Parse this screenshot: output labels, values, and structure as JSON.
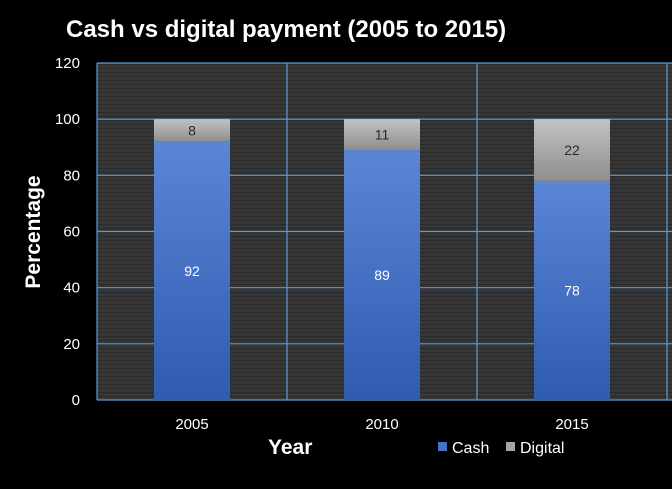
{
  "chart_data": {
    "type": "bar",
    "stacked": true,
    "title": "Cash vs digital payment (2005 to 2015)",
    "xlabel": "Year",
    "ylabel": "Percentage",
    "ylim": [
      0,
      120
    ],
    "yticks": [
      0,
      20,
      40,
      60,
      80,
      100,
      120
    ],
    "categories": [
      "2005",
      "2010",
      "2015"
    ],
    "series": [
      {
        "name": "Cash",
        "values": [
          92,
          89,
          78
        ],
        "color": "#4472c4"
      },
      {
        "name": "Digital",
        "values": [
          8,
          11,
          22
        ],
        "color": "#a5a5a5"
      }
    ],
    "data_labels": true,
    "grid": true,
    "legend": "bottom",
    "colors": {
      "background": "#000000",
      "plot_background": "#3a3a3a",
      "gridline": "#5b9bd5",
      "hatch": "#2b2b2b",
      "text": "#ffffff"
    }
  }
}
